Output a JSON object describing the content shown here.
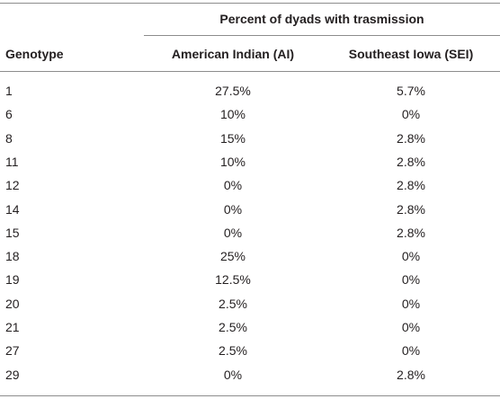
{
  "table": {
    "spanning_header": "Percent of dyads with trasmission",
    "columns": [
      "Genotype",
      "American Indian (AI)",
      "Southeast Iowa (SEI)"
    ],
    "rows": [
      [
        "1",
        "27.5%",
        "5.7%"
      ],
      [
        "6",
        "10%",
        "0%"
      ],
      [
        "8",
        "15%",
        "2.8%"
      ],
      [
        "11",
        "10%",
        "2.8%"
      ],
      [
        "12",
        "0%",
        "2.8%"
      ],
      [
        "14",
        "0%",
        "2.8%"
      ],
      [
        "15",
        "0%",
        "2.8%"
      ],
      [
        "18",
        "25%",
        "0%"
      ],
      [
        "19",
        "12.5%",
        "0%"
      ],
      [
        "20",
        "2.5%",
        "0%"
      ],
      [
        "21",
        "2.5%",
        "0%"
      ],
      [
        "27",
        "2.5%",
        "0%"
      ],
      [
        "29",
        "0%",
        "2.8%"
      ]
    ]
  }
}
